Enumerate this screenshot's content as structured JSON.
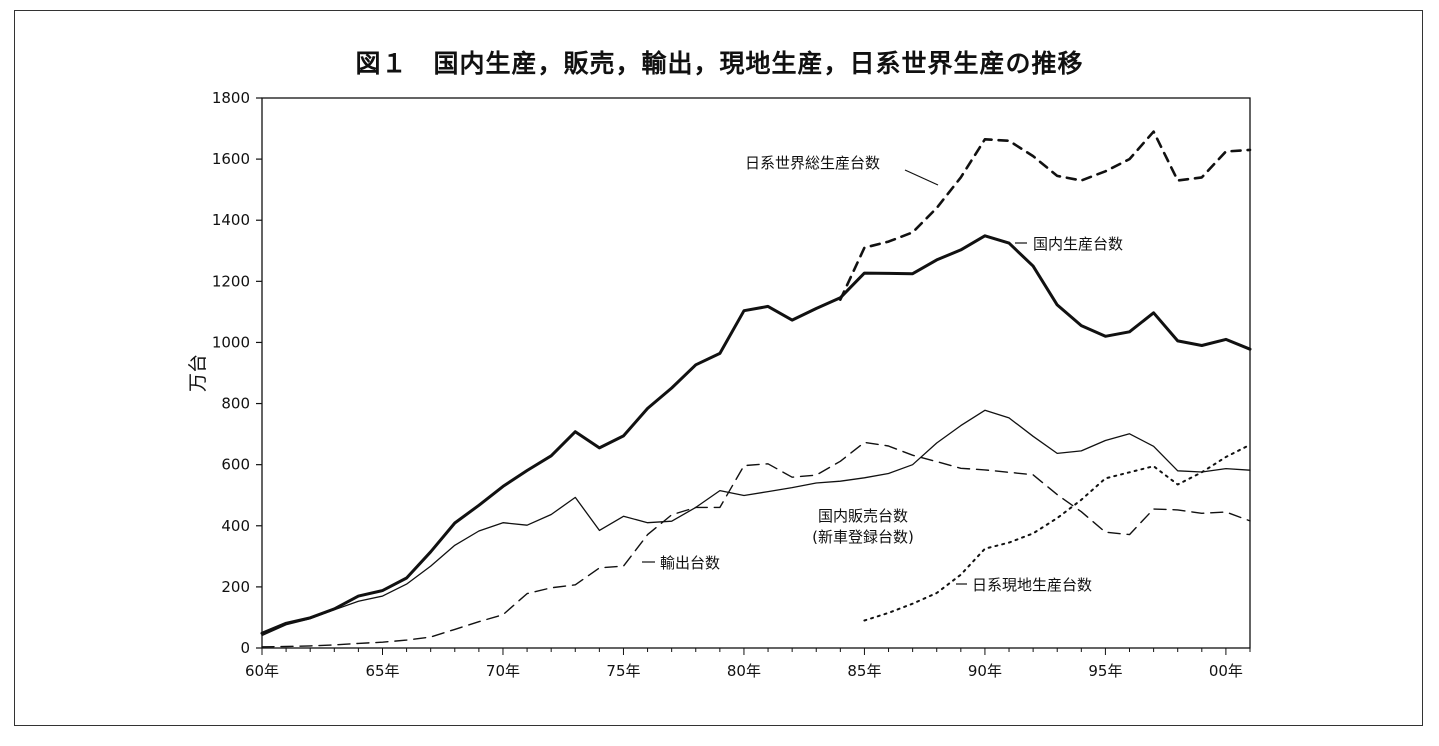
{
  "chart_data": {
    "type": "line",
    "title": "図１　国内生産，販売，輸出，現地生産，日系世界生産の推移",
    "ylabel": "万台",
    "xlabel": "",
    "ylim": [
      0,
      1800
    ],
    "xlim": [
      1960,
      2001
    ],
    "yticks": [
      "0",
      "200",
      "400",
      "600",
      "800",
      "1000",
      "1200",
      "1400",
      "1600",
      "1800"
    ],
    "xticks": [
      {
        "x": 1960,
        "label": "60年"
      },
      {
        "x": 1965,
        "label": "65年"
      },
      {
        "x": 1970,
        "label": "70年"
      },
      {
        "x": 1975,
        "label": "75年"
      },
      {
        "x": 1980,
        "label": "80年"
      },
      {
        "x": 1985,
        "label": "85年"
      },
      {
        "x": 1990,
        "label": "90年"
      },
      {
        "x": 1995,
        "label": "95年"
      },
      {
        "x": 2000,
        "label": "00年"
      }
    ],
    "grid": false,
    "series": [
      {
        "name": "日系世界総生産台数",
        "style": "dashed-thick",
        "x": [
          1984,
          1985,
          1986,
          1987,
          1988,
          1989,
          1990,
          1991,
          1992,
          1993,
          1994,
          1995,
          1996,
          1997,
          1998,
          1999,
          2000,
          2001
        ],
        "values": [
          1140,
          1310,
          1330,
          1360,
          1440,
          1540,
          1665,
          1660,
          1610,
          1545,
          1530,
          1560,
          1600,
          1690,
          1530,
          1540,
          1625,
          1630
        ]
      },
      {
        "name": "国内生産台数",
        "style": "solid-thick",
        "x": [
          1960,
          1961,
          1962,
          1963,
          1964,
          1965,
          1966,
          1967,
          1968,
          1969,
          1970,
          1971,
          1972,
          1973,
          1974,
          1975,
          1976,
          1977,
          1978,
          1979,
          1980,
          1981,
          1982,
          1983,
          1984,
          1985,
          1986,
          1987,
          1988,
          1989,
          1990,
          1991,
          1992,
          1993,
          1994,
          1995,
          1996,
          1997,
          1998,
          1999,
          2000,
          2001
        ],
        "values": [
          48,
          81,
          99,
          128,
          170,
          188,
          229,
          315,
          409,
          467,
          529,
          581,
          629,
          708,
          655,
          694,
          784,
          851,
          927,
          964,
          1104,
          1118,
          1073,
          1111,
          1146,
          1227,
          1226,
          1225,
          1270,
          1303,
          1349,
          1325,
          1250,
          1123,
          1055,
          1020,
          1035,
          1097,
          1005,
          990,
          1010,
          978
        ]
      },
      {
        "name": "国内販売台数（新車登録台数）",
        "style": "solid-thin",
        "x": [
          1960,
          1961,
          1962,
          1963,
          1964,
          1965,
          1966,
          1967,
          1968,
          1969,
          1970,
          1971,
          1972,
          1973,
          1974,
          1975,
          1976,
          1977,
          1978,
          1979,
          1980,
          1981,
          1982,
          1983,
          1984,
          1985,
          1986,
          1987,
          1988,
          1989,
          1990,
          1991,
          1992,
          1993,
          1994,
          1995,
          1996,
          1997,
          1998,
          1999,
          2000,
          2001
        ],
        "values": [
          41,
          76,
          96,
          125,
          153,
          170,
          209,
          268,
          336,
          383,
          410,
          402,
          437,
          493,
          385,
          431,
          410,
          415,
          460,
          515,
          499,
          512,
          525,
          540,
          546,
          557,
          571,
          600,
          671,
          728,
          778,
          753,
          693,
          637,
          645,
          679,
          701,
          660,
          580,
          576,
          587,
          582
        ]
      },
      {
        "name": "輸出台数",
        "style": "dashed-thin",
        "x": [
          1960,
          1961,
          1962,
          1963,
          1964,
          1965,
          1966,
          1967,
          1968,
          1969,
          1970,
          1971,
          1972,
          1973,
          1974,
          1975,
          1976,
          1977,
          1978,
          1979,
          1980,
          1981,
          1982,
          1983,
          1984,
          1985,
          1986,
          1987,
          1988,
          1989,
          1990,
          1991,
          1992,
          1993,
          1994,
          1995,
          1996,
          1997,
          1998,
          1999,
          2000,
          2001
        ],
        "values": [
          4,
          5,
          7,
          10,
          15,
          19,
          26,
          36,
          61,
          86,
          109,
          178,
          197,
          207,
          262,
          268,
          371,
          436,
          460,
          460,
          597,
          603,
          559,
          566,
          611,
          673,
          661,
          631,
          610,
          588,
          583,
          575,
          567,
          502,
          446,
          379,
          371,
          455,
          452,
          441,
          445,
          416
        ]
      },
      {
        "name": "日系現地生産台数",
        "style": "dotted",
        "x": [
          1985,
          1986,
          1987,
          1988,
          1989,
          1990,
          1991,
          1992,
          1993,
          1994,
          1995,
          1996,
          1997,
          1998,
          1999,
          2000,
          2001
        ],
        "values": [
          90,
          115,
          145,
          180,
          240,
          325,
          345,
          375,
          425,
          485,
          555,
          575,
          595,
          535,
          575,
          625,
          665
        ]
      }
    ],
    "annotations": [
      {
        "id": "world",
        "text": "日系世界総生産台数"
      },
      {
        "id": "domestic",
        "text": "国内生産台数"
      },
      {
        "id": "sales1",
        "text": "国内販売台数"
      },
      {
        "id": "sales2",
        "text": "(新車登録台数)"
      },
      {
        "id": "export",
        "text": "輸出台数"
      },
      {
        "id": "local",
        "text": "日系現地生産台数"
      }
    ]
  }
}
